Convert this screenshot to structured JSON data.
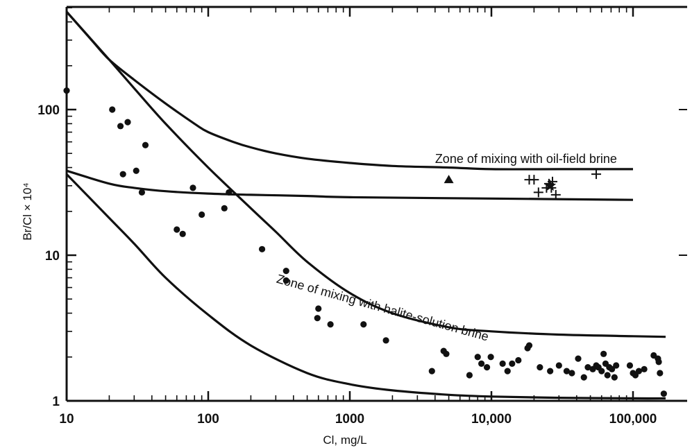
{
  "chart_data": {
    "type": "scatter",
    "title": "",
    "xlabel": "Cl, mg/L",
    "ylabel": "Br/Cl × 10⁴",
    "x_scale": "log",
    "y_scale": "log",
    "xlim": [
      10,
      200000
    ],
    "ylim": [
      1,
      550
    ],
    "grid": false,
    "x_tick_labels": [
      "10",
      "100",
      "1000",
      "10,000",
      "100,000"
    ],
    "x_tick_values": [
      10,
      100,
      1000,
      10000,
      100000
    ],
    "y_tick_labels": [
      "1",
      "10",
      "100"
    ],
    "y_tick_values": [
      1,
      10,
      100
    ],
    "curves": [
      {
        "x": [
          10,
          15,
          20,
          30,
          50,
          80,
          100,
          150,
          200,
          300,
          500,
          1000,
          2000,
          5000,
          10000,
          30000,
          100000
        ],
        "y": [
          470,
          300,
          220,
          160,
          110,
          80,
          70,
          60,
          55,
          50,
          46,
          43,
          41,
          40,
          39,
          39,
          39
        ]
      },
      {
        "x": [
          10,
          20,
          30,
          50,
          100,
          200,
          500,
          1000,
          10000,
          100000
        ],
        "y": [
          38,
          31,
          29,
          27.5,
          26.5,
          26,
          25.5,
          25,
          24.5,
          24
        ]
      },
      {
        "x": [
          10,
          20,
          30,
          50,
          100,
          200,
          300,
          500,
          1000,
          2000,
          5000,
          10000,
          30000,
          100000,
          170000
        ],
        "y": [
          470,
          220,
          140,
          80,
          40,
          21,
          14.5,
          9,
          5.5,
          4.0,
          3.2,
          3.0,
          2.85,
          2.78,
          2.75
        ]
      },
      {
        "x": [
          10,
          20,
          30,
          50,
          100,
          200,
          500,
          1000,
          2000,
          5000,
          10000,
          30000,
          100000,
          170000
        ],
        "y": [
          36,
          18,
          12,
          7,
          3.9,
          2.4,
          1.55,
          1.3,
          1.18,
          1.1,
          1.07,
          1.05,
          1.04,
          1.04
        ]
      }
    ],
    "annotations": [
      {
        "text": "Zone of mixing with oil-field brine",
        "x": 4000,
        "y": 43
      },
      {
        "text": "Zone of mixing with halite-solution brine",
        "x": 300,
        "y": 6.5
      }
    ],
    "series": [
      {
        "marker": "circle",
        "points": [
          [
            10,
            135
          ],
          [
            21,
            100
          ],
          [
            24,
            77
          ],
          [
            27,
            82
          ],
          [
            25,
            36
          ],
          [
            31,
            38
          ],
          [
            36,
            57
          ],
          [
            34,
            27
          ],
          [
            60,
            15
          ],
          [
            66,
            14
          ],
          [
            78,
            29
          ],
          [
            90,
            19
          ],
          [
            130,
            21
          ],
          [
            140,
            27
          ],
          [
            240,
            11
          ],
          [
            355,
            7.8
          ],
          [
            355,
            6.7
          ],
          [
            600,
            4.3
          ],
          [
            590,
            3.7
          ],
          [
            730,
            3.35
          ],
          [
            1250,
            3.35
          ],
          [
            1800,
            2.6
          ],
          [
            3800,
            1.6
          ],
          [
            4600,
            2.2
          ],
          [
            4800,
            2.1
          ],
          [
            7000,
            1.5
          ],
          [
            8000,
            2.0
          ],
          [
            8500,
            1.8
          ],
          [
            9300,
            1.7
          ],
          [
            9900,
            2.0
          ],
          [
            12000,
            1.8
          ],
          [
            13000,
            1.6
          ],
          [
            14000,
            1.8
          ],
          [
            15500,
            1.9
          ],
          [
            18000,
            2.3
          ],
          [
            18500,
            2.4
          ],
          [
            22000,
            1.7
          ],
          [
            26000,
            1.6
          ],
          [
            30000,
            1.75
          ],
          [
            34000,
            1.6
          ],
          [
            37000,
            1.55
          ],
          [
            41000,
            1.95
          ],
          [
            45000,
            1.45
          ],
          [
            48000,
            1.7
          ],
          [
            52000,
            1.65
          ],
          [
            55000,
            1.75
          ],
          [
            57000,
            1.7
          ],
          [
            60000,
            1.6
          ],
          [
            62000,
            2.1
          ],
          [
            64000,
            1.8
          ],
          [
            66000,
            1.5
          ],
          [
            68000,
            1.7
          ],
          [
            71000,
            1.65
          ],
          [
            74000,
            1.45
          ],
          [
            76000,
            1.75
          ],
          [
            95000,
            1.75
          ],
          [
            100000,
            1.55
          ],
          [
            104000,
            1.5
          ],
          [
            110000,
            1.6
          ],
          [
            120000,
            1.65
          ],
          [
            140000,
            2.05
          ],
          [
            150000,
            1.95
          ],
          [
            152000,
            1.85
          ],
          [
            155000,
            1.55
          ],
          [
            165000,
            1.12
          ]
        ]
      },
      {
        "marker": "triangle",
        "points": [
          [
            5000,
            33
          ]
        ]
      },
      {
        "marker": "plus",
        "points": [
          [
            18500,
            33
          ],
          [
            20000,
            33
          ],
          [
            21500,
            27
          ],
          [
            24500,
            29
          ],
          [
            25500,
            31
          ],
          [
            26500,
            29
          ],
          [
            27000,
            32
          ],
          [
            28500,
            26
          ],
          [
            55000,
            36
          ]
        ]
      },
      {
        "marker": "star",
        "points": [
          [
            26000,
            30
          ]
        ]
      }
    ]
  }
}
